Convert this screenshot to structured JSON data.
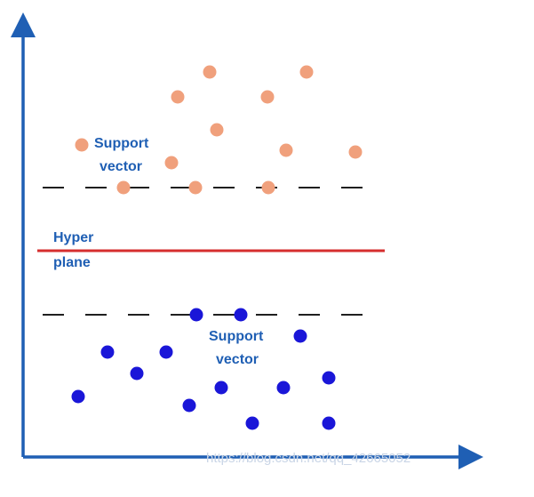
{
  "labels": {
    "support_vector_top": [
      "Support",
      "vector"
    ],
    "hyperplane": [
      "Hyper",
      "plane"
    ],
    "support_vector_bottom": [
      "Support",
      "vector"
    ]
  },
  "watermark": "https://blog.csdn.net/qq_42665052",
  "colors": {
    "axis": "#1f5fb4",
    "hyperplane": "#d62e2e",
    "margin": "#1f1f1f",
    "class_top": "#f0a07c",
    "class_bottom": "#1a16d8",
    "label": "#1f5fb4",
    "watermark": "#c9d5e6"
  },
  "classes": [
    {
      "name": "top",
      "color_key": "class_top",
      "count": 14,
      "support_vectors_on_margin": 3
    },
    {
      "name": "bottom",
      "color_key": "class_bottom",
      "count": 14,
      "support_vectors_on_margin": 2
    }
  ]
}
